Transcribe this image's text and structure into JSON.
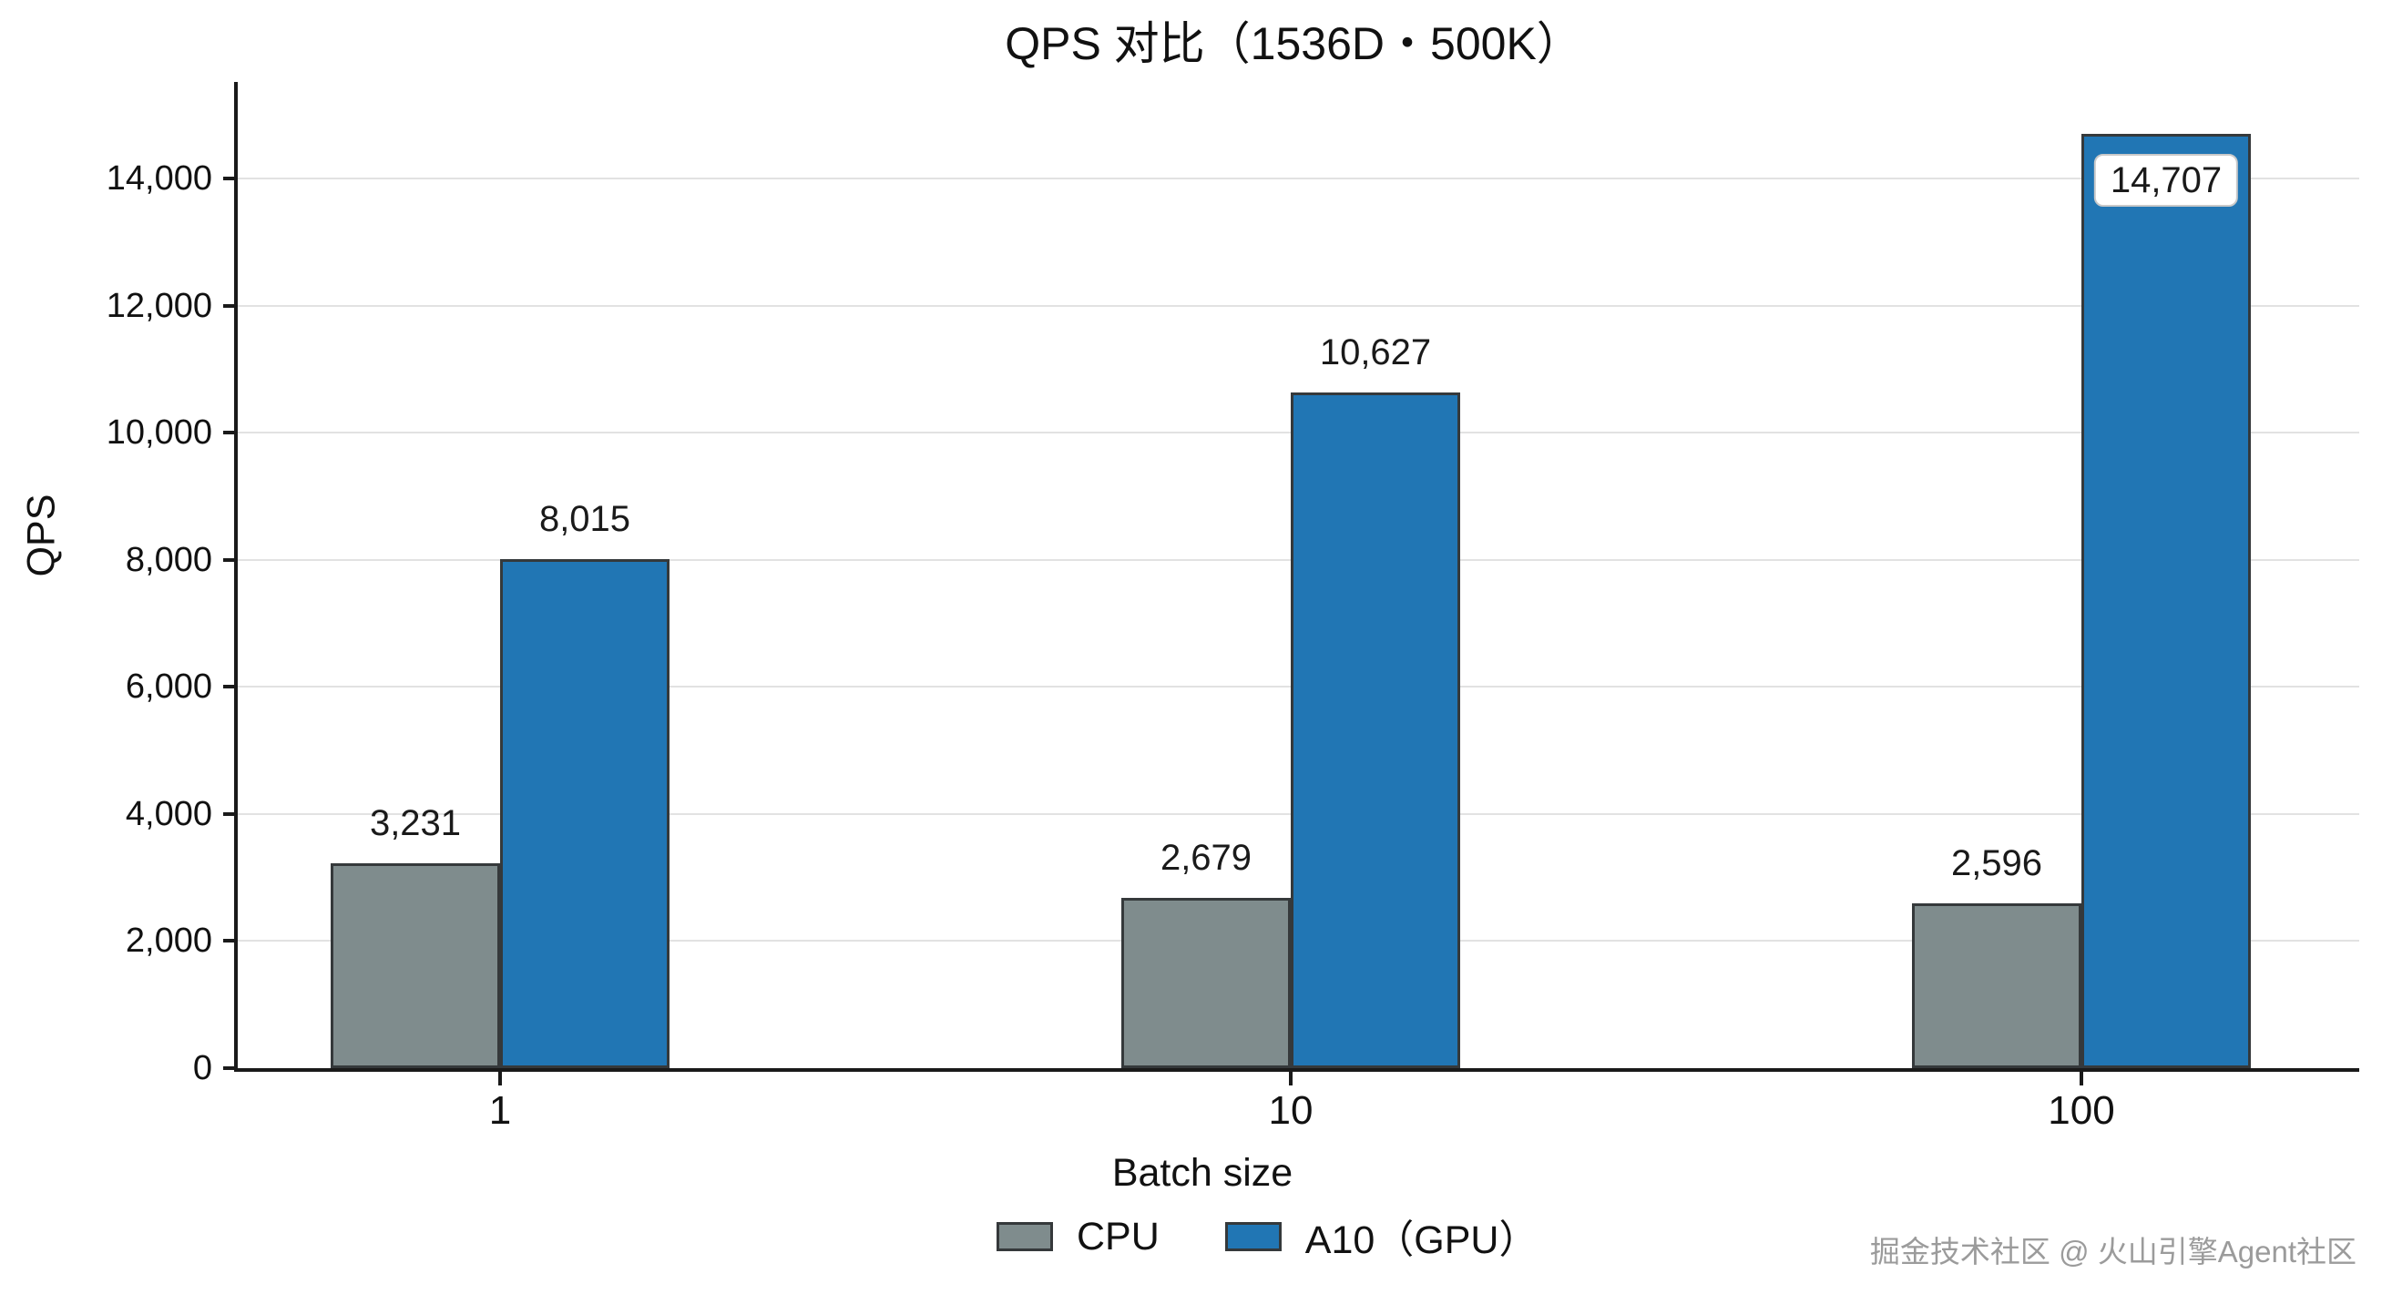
{
  "figure": {
    "watermark": "掘金技术社区 @ 火山引擎Agent社区"
  },
  "chart_data": {
    "type": "bar",
    "title": "QPS 对比（1536D・500K）",
    "xlabel": "Batch size",
    "ylabel": "QPS",
    "categories": [
      "1",
      "10",
      "100"
    ],
    "series": [
      {
        "name": "CPU",
        "color": "#7f8c8d",
        "values": [
          3231,
          2679,
          2596
        ],
        "value_labels": [
          "3,231",
          "2,679",
          "2,596"
        ]
      },
      {
        "name": "A10（GPU）",
        "color": "#2176b4",
        "values": [
          8015,
          10627,
          14707
        ],
        "value_labels": [
          "8,015",
          "10,627",
          "14,707"
        ],
        "boxed_label_index": 2
      }
    ],
    "ylim": [
      0,
      15519
    ],
    "yticks": {
      "values": [
        0,
        2000,
        4000,
        6000,
        8000,
        10000,
        12000,
        14000
      ],
      "labels": [
        "0",
        "2,000",
        "4,000",
        "6,000",
        "8,000",
        "10,000",
        "12,000",
        "14,000"
      ]
    },
    "grid": "horizontal",
    "bar_edge_color": "#35393b",
    "grid_color": "#e2e2e2",
    "legend_position": "bottom-center"
  }
}
